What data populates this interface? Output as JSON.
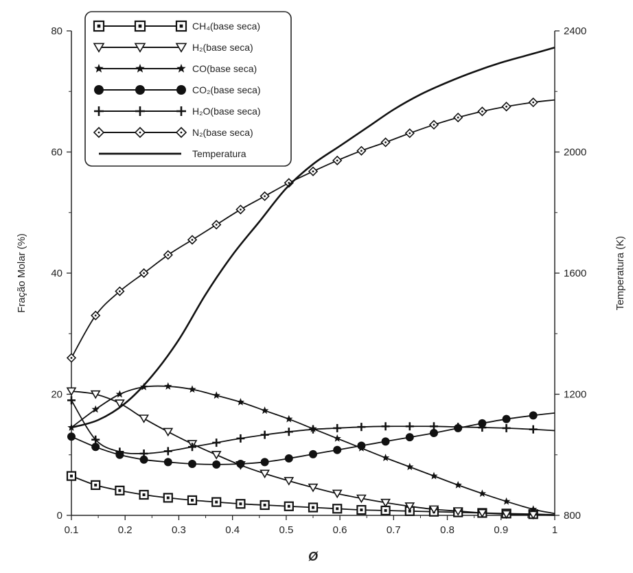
{
  "chart_data": {
    "type": "line",
    "title": "",
    "xlabel": "Ø",
    "ylabel_left": "Fração Molar (%)",
    "ylabel_right": "Temperatura (K)",
    "xlim": [
      0.1,
      1.0
    ],
    "ylim_left": [
      0,
      80
    ],
    "ylim_right": [
      800,
      2400
    ],
    "x_ticks": [
      "0.1",
      "0.2",
      "0.3",
      "0.4",
      "0.5",
      "0.6",
      "0.7",
      "0.8",
      "0.9",
      "1"
    ],
    "y_left_ticks": [
      "0",
      "20",
      "40",
      "60",
      "80"
    ],
    "y_right_ticks": [
      "800",
      "1200",
      "1600",
      "2000",
      "2400"
    ],
    "grid": false,
    "legend_position": "top-left",
    "series": [
      {
        "name": "CH₄(base seca)",
        "axis": "left",
        "marker": "square",
        "x": [
          0.1,
          0.145,
          0.19,
          0.235,
          0.28,
          0.325,
          0.37,
          0.415,
          0.46,
          0.505,
          0.55,
          0.595,
          0.64,
          0.685,
          0.73,
          0.775,
          0.82,
          0.865,
          0.91,
          0.96,
          1.0
        ],
        "y": [
          6.5,
          5.0,
          4.1,
          3.4,
          2.9,
          2.5,
          2.2,
          1.9,
          1.7,
          1.5,
          1.3,
          1.1,
          0.9,
          0.8,
          0.7,
          0.6,
          0.5,
          0.4,
          0.3,
          0.2,
          0.1
        ]
      },
      {
        "name": "H₂(base seca)",
        "axis": "left",
        "marker": "triangle-down",
        "x": [
          0.1,
          0.145,
          0.19,
          0.235,
          0.28,
          0.325,
          0.37,
          0.415,
          0.46,
          0.505,
          0.55,
          0.595,
          0.64,
          0.685,
          0.73,
          0.775,
          0.82,
          0.865,
          0.91,
          0.96,
          1.0
        ],
        "y": [
          20.5,
          20.0,
          18.5,
          16.0,
          13.8,
          11.8,
          10.0,
          8.3,
          6.9,
          5.7,
          4.6,
          3.6,
          2.8,
          2.1,
          1.5,
          1.0,
          0.7,
          0.4,
          0.2,
          0.1,
          0.0
        ]
      },
      {
        "name": "CO(base seca)",
        "axis": "left",
        "marker": "star",
        "x": [
          0.1,
          0.145,
          0.19,
          0.235,
          0.28,
          0.325,
          0.37,
          0.415,
          0.46,
          0.505,
          0.55,
          0.595,
          0.64,
          0.685,
          0.73,
          0.775,
          0.82,
          0.865,
          0.91,
          0.96,
          1.0
        ],
        "y": [
          14.5,
          17.5,
          20.0,
          21.2,
          21.3,
          20.8,
          19.8,
          18.7,
          17.3,
          15.9,
          14.3,
          12.7,
          11.1,
          9.5,
          8.0,
          6.5,
          5.0,
          3.6,
          2.3,
          1.0,
          0.3
        ]
      },
      {
        "name": "CO₂(base seca)",
        "axis": "left",
        "marker": "circle",
        "x": [
          0.1,
          0.145,
          0.19,
          0.235,
          0.28,
          0.325,
          0.37,
          0.415,
          0.46,
          0.505,
          0.55,
          0.595,
          0.64,
          0.685,
          0.73,
          0.775,
          0.82,
          0.865,
          0.91,
          0.96,
          1.0
        ],
        "y": [
          13.0,
          11.3,
          10.0,
          9.2,
          8.8,
          8.5,
          8.4,
          8.5,
          8.8,
          9.4,
          10.1,
          10.8,
          11.5,
          12.2,
          12.9,
          13.6,
          14.4,
          15.2,
          15.9,
          16.5,
          16.9
        ]
      },
      {
        "name": "H₂O(base seca)",
        "axis": "left",
        "marker": "plus",
        "x": [
          0.1,
          0.145,
          0.19,
          0.235,
          0.28,
          0.325,
          0.37,
          0.415,
          0.46,
          0.505,
          0.55,
          0.595,
          0.64,
          0.685,
          0.73,
          0.775,
          0.82,
          0.865,
          0.91,
          0.96,
          1.0
        ],
        "y": [
          19.0,
          12.5,
          10.5,
          10.2,
          10.6,
          11.3,
          12.0,
          12.7,
          13.3,
          13.8,
          14.2,
          14.4,
          14.6,
          14.7,
          14.7,
          14.7,
          14.6,
          14.5,
          14.4,
          14.2,
          14.0
        ]
      },
      {
        "name": "N₂(base seca)",
        "axis": "left",
        "marker": "diamond",
        "x": [
          0.1,
          0.145,
          0.19,
          0.235,
          0.28,
          0.325,
          0.37,
          0.415,
          0.46,
          0.505,
          0.55,
          0.595,
          0.64,
          0.685,
          0.73,
          0.775,
          0.82,
          0.865,
          0.91,
          0.96,
          1.0
        ],
        "y": [
          26.0,
          33.0,
          37.0,
          40.0,
          43.0,
          45.5,
          48.0,
          50.5,
          52.7,
          54.9,
          56.8,
          58.6,
          60.2,
          61.6,
          63.1,
          64.5,
          65.7,
          66.7,
          67.5,
          68.2,
          68.6
        ]
      },
      {
        "name": "Temperatura",
        "axis": "right",
        "marker": "none",
        "x": [
          0.1,
          0.15,
          0.2,
          0.25,
          0.3,
          0.35,
          0.4,
          0.45,
          0.5,
          0.55,
          0.6,
          0.65,
          0.7,
          0.75,
          0.8,
          0.85,
          0.9,
          0.95,
          1.0
        ],
        "y": [
          1090,
          1115,
          1170,
          1260,
          1380,
          1530,
          1660,
          1770,
          1880,
          1960,
          2020,
          2080,
          2140,
          2190,
          2230,
          2265,
          2295,
          2320,
          2345
        ]
      }
    ]
  }
}
